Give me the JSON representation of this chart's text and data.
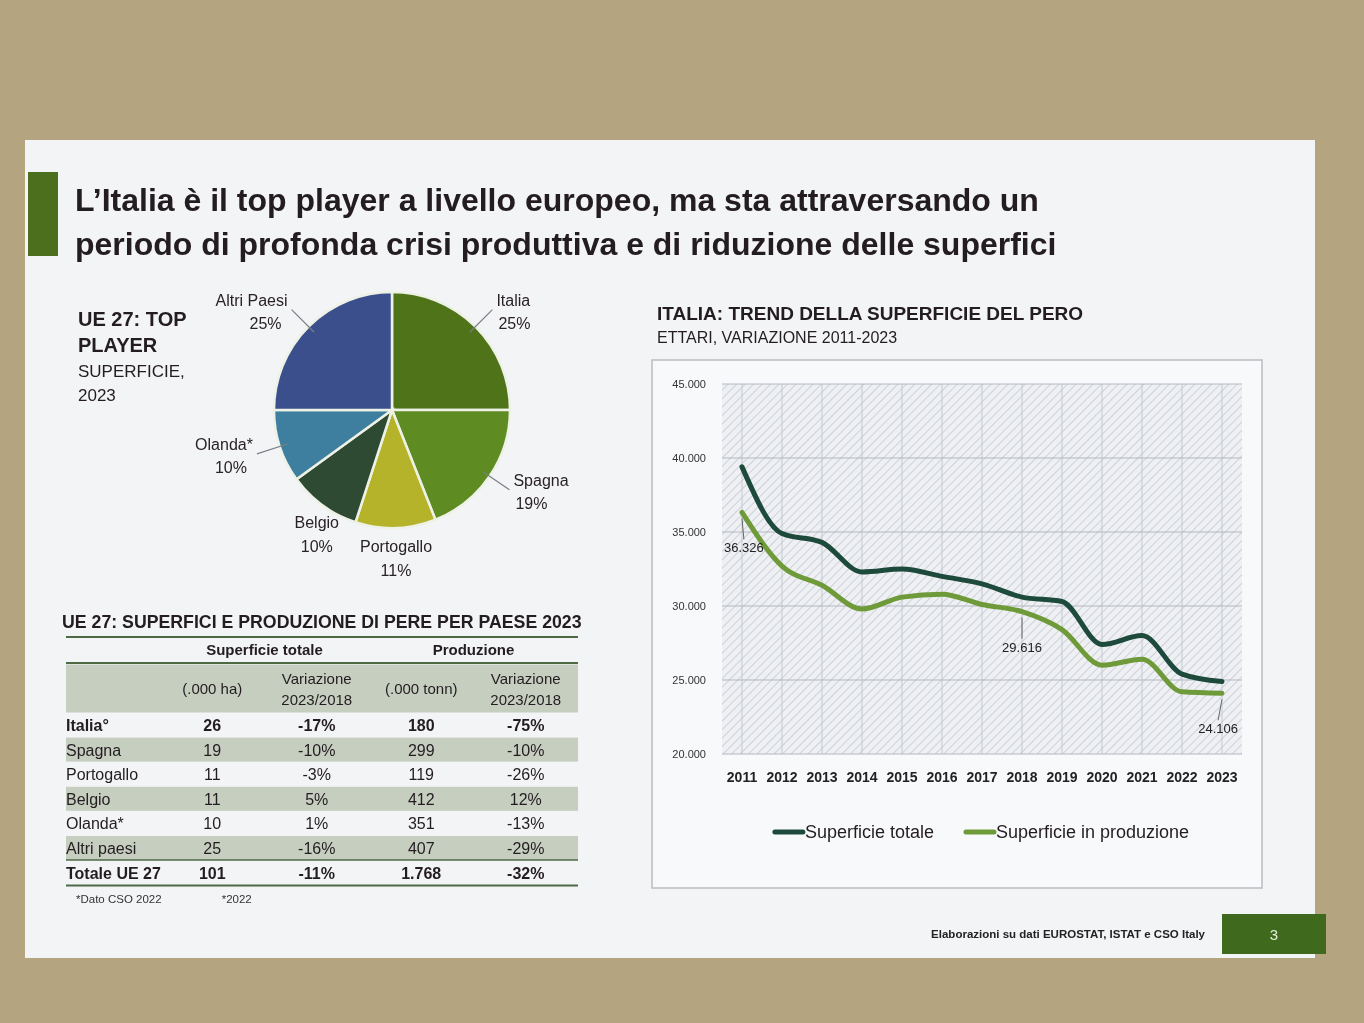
{
  "chart_data": [
    {
      "type": "other",
      "title": "L’Italia è il top player a livello europeo, ma sta attraversando un periodo di profonda crisi produttiva e di riduzione delle superfici",
      "annotations": [
        "Elaborazioni su dati EUROSTAT, ISTAT e CSO Italy",
        "3"
      ]
    },
    {
      "type": "pie",
      "title": "UE 27: TOP PLAYER",
      "subtitle": "SUPERFICIE, 2023",
      "categories": [
        "Italia",
        "Spagna",
        "Portogallo",
        "Belgio",
        "Olanda*",
        "Altri Paesi"
      ],
      "values": [
        25,
        19,
        11,
        10,
        10,
        25
      ],
      "value_labels": [
        "25%",
        "19%",
        "11%",
        "10%",
        "10%",
        "25%"
      ],
      "colors": [
        "#4e7318",
        "#5e8b22",
        "#b5b32a",
        "#2f4a32",
        "#3e7fa0",
        "#3a4f8c"
      ]
    },
    {
      "type": "other",
      "title": "UE 27: SUPERFICI E PRODUZIONE DI PERE PER PAESE 2023",
      "categories": [
        "Italia°",
        "Spagna",
        "Portogallo",
        "Belgio",
        "Olanda*",
        "Altri paesi",
        "Totale UE 27"
      ],
      "series": [
        {
          "name": "(.000 ha)",
          "values": [
            26,
            19,
            11,
            11,
            10,
            25,
            101
          ],
          "value_labels": [
            "26",
            "19",
            "11",
            "11",
            "10",
            "25",
            "101"
          ]
        },
        {
          "name": "Variazione 2023/2018",
          "values": [
            -17,
            -10,
            -3,
            5,
            1,
            -16,
            -11
          ],
          "value_labels": [
            "-17%",
            "-10%",
            "-3%",
            "5%",
            "1%",
            "-16%",
            "-11%"
          ]
        },
        {
          "name": "(.000 tonn)",
          "values": [
            180,
            299,
            119,
            412,
            351,
            407,
            1768
          ],
          "value_labels": [
            "180",
            "299",
            "119",
            "412",
            "351",
            "407",
            "1.768"
          ]
        },
        {
          "name": "Variazione 2023/2018",
          "values": [
            -75,
            -10,
            -26,
            12,
            -13,
            -29,
            -32
          ],
          "value_labels": [
            "-75%",
            "-10%",
            "-26%",
            "12%",
            "-13%",
            "-29%",
            "-32%"
          ]
        }
      ],
      "annotations": [
        "Superficie totale",
        "Produzione",
        "*Dato CSO 2022",
        "*2022"
      ]
    },
    {
      "type": "line",
      "title": "ITALIA: TREND DELLA SUPERFICIE DEL PERO",
      "subtitle": "ETTARI, VARIAZIONE 2011-2023",
      "categories": [
        "2011",
        "2012",
        "2013",
        "2014",
        "2015",
        "2016",
        "2017",
        "2018",
        "2019",
        "2020",
        "2021",
        "2022",
        "2023"
      ],
      "series": [
        {
          "name": "Superficie totale",
          "color": "#1e4a3c",
          "values": [
            39400,
            34900,
            34300,
            32300,
            32500,
            32000,
            31500,
            30600,
            30300,
            27400,
            28000,
            25400,
            24900
          ]
        },
        {
          "name": "Superficie in produzione",
          "color": "#6e9a3a",
          "values": [
            36326,
            32700,
            31400,
            29800,
            30600,
            30800,
            30100,
            29616,
            28400,
            26000,
            26400,
            24200,
            24106
          ],
          "value_labels": [
            "36.326",
            null,
            null,
            null,
            null,
            null,
            null,
            "29.616",
            null,
            null,
            null,
            null,
            "24.106"
          ]
        }
      ],
      "ylim": [
        20000,
        45000
      ],
      "yticks": [
        {
          "value": 20000,
          "label": "20.000"
        },
        {
          "value": 25000,
          "label": "25.000"
        },
        {
          "value": 30000,
          "label": "30.000"
        },
        {
          "value": 35000,
          "label": "35.000"
        },
        {
          "value": 40000,
          "label": "40.000"
        },
        {
          "value": 45000,
          "label": "45.000"
        }
      ],
      "grid": true,
      "legend": "bottom"
    }
  ]
}
